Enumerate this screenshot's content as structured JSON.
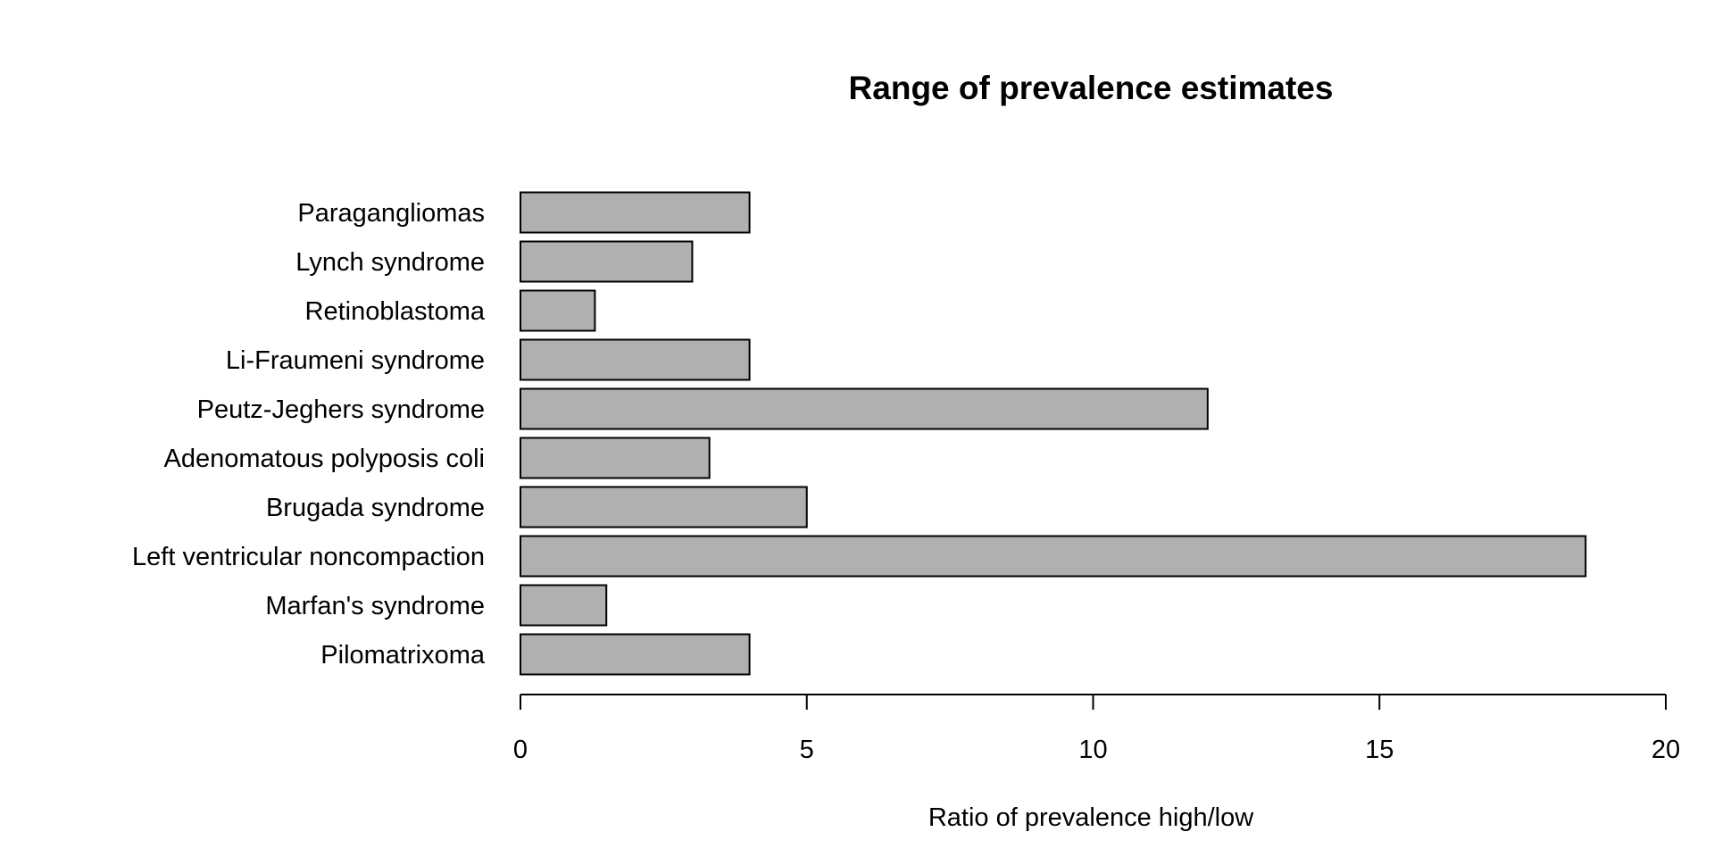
{
  "chart_data": {
    "type": "bar",
    "orientation": "horizontal",
    "title": "Range of prevalence estimates",
    "xlabel": "Ratio of prevalence high/low",
    "ylabel": "",
    "xlim": [
      0,
      20
    ],
    "xticks": [
      0,
      5,
      10,
      15,
      20
    ],
    "grid": false,
    "bar_color": "#b0b0b0",
    "categories": [
      "Paragangliomas",
      "Lynch syndrome",
      "Retinoblastoma",
      "Li-Fraumeni syndrome",
      "Peutz-Jeghers syndrome",
      "Adenomatous polyposis coli",
      "Brugada syndrome",
      "Left ventricular noncompaction",
      "Marfan's syndrome",
      "Pilomatrixoma"
    ],
    "values": [
      4,
      3,
      1.3,
      4,
      12,
      3.3,
      5,
      18.6,
      1.5,
      4
    ]
  }
}
